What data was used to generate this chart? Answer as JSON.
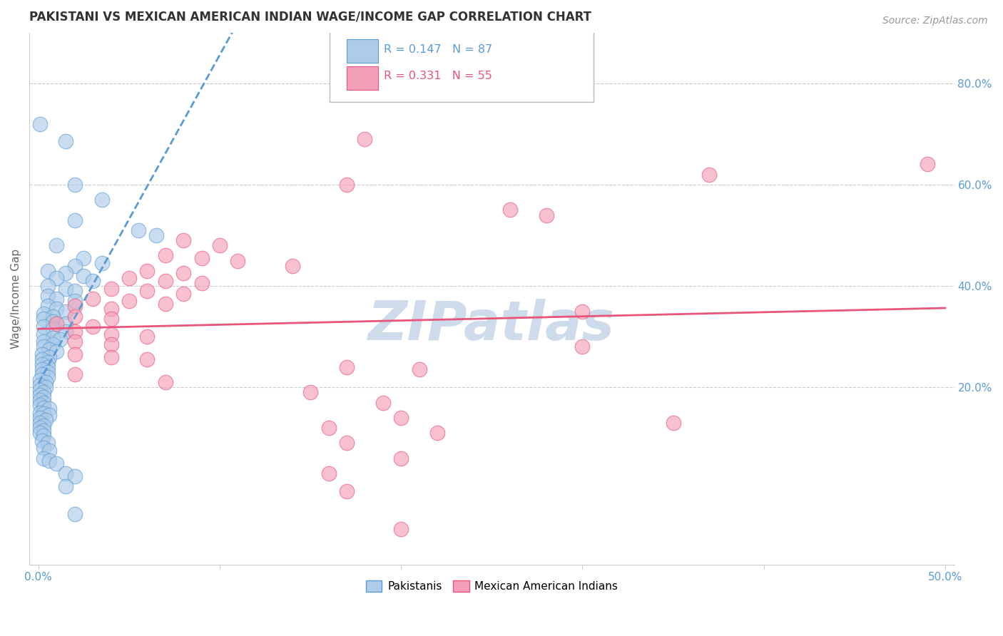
{
  "title": "PAKISTANI VS MEXICAN AMERICAN INDIAN WAGE/INCOME GAP CORRELATION CHART",
  "source": "Source: ZipAtlas.com",
  "ylabel": "Wage/Income Gap",
  "watermark": "ZIPatlas",
  "xlim": [
    -0.005,
    0.505
  ],
  "ylim": [
    -0.15,
    0.9
  ],
  "xtick_positions": [
    0.0,
    0.1,
    0.2,
    0.3,
    0.4,
    0.5
  ],
  "xtick_labels": [
    "0.0%",
    "",
    "",
    "",
    "",
    "50.0%"
  ],
  "yticks_right": [
    0.2,
    0.4,
    0.6,
    0.8
  ],
  "blue_line_color": "#5b9bd5",
  "pink_line_color": "#e8547a",
  "blue_scatter_color": "#aecce8",
  "pink_scatter_color": "#f4a0b8",
  "grid_color": "#cccccc",
  "axis_color": "#5b9bd5",
  "watermark_color": "#c8d8e8",
  "background_color": "#ffffff",
  "title_fontsize": 12,
  "source_fontsize": 10,
  "tick_fontsize": 11,
  "ylabel_fontsize": 11,
  "blue_R": 0.147,
  "blue_N": 87,
  "pink_R": 0.331,
  "pink_N": 55,
  "blue_scatter": [
    [
      0.001,
      0.72
    ],
    [
      0.015,
      0.685
    ],
    [
      0.02,
      0.6
    ],
    [
      0.035,
      0.57
    ],
    [
      0.02,
      0.53
    ],
    [
      0.055,
      0.51
    ],
    [
      0.065,
      0.5
    ],
    [
      0.01,
      0.48
    ],
    [
      0.025,
      0.455
    ],
    [
      0.035,
      0.445
    ],
    [
      0.02,
      0.44
    ],
    [
      0.005,
      0.43
    ],
    [
      0.015,
      0.425
    ],
    [
      0.025,
      0.42
    ],
    [
      0.01,
      0.415
    ],
    [
      0.03,
      0.41
    ],
    [
      0.005,
      0.4
    ],
    [
      0.015,
      0.395
    ],
    [
      0.02,
      0.39
    ],
    [
      0.005,
      0.38
    ],
    [
      0.01,
      0.375
    ],
    [
      0.02,
      0.37
    ],
    [
      0.005,
      0.36
    ],
    [
      0.01,
      0.355
    ],
    [
      0.015,
      0.35
    ],
    [
      0.003,
      0.345
    ],
    [
      0.008,
      0.34
    ],
    [
      0.003,
      0.335
    ],
    [
      0.008,
      0.33
    ],
    [
      0.015,
      0.325
    ],
    [
      0.003,
      0.32
    ],
    [
      0.008,
      0.315
    ],
    [
      0.015,
      0.31
    ],
    [
      0.003,
      0.305
    ],
    [
      0.008,
      0.298
    ],
    [
      0.012,
      0.295
    ],
    [
      0.003,
      0.29
    ],
    [
      0.008,
      0.285
    ],
    [
      0.003,
      0.28
    ],
    [
      0.006,
      0.275
    ],
    [
      0.01,
      0.27
    ],
    [
      0.002,
      0.265
    ],
    [
      0.006,
      0.26
    ],
    [
      0.002,
      0.255
    ],
    [
      0.005,
      0.25
    ],
    [
      0.002,
      0.245
    ],
    [
      0.005,
      0.24
    ],
    [
      0.002,
      0.235
    ],
    [
      0.005,
      0.23
    ],
    [
      0.002,
      0.225
    ],
    [
      0.005,
      0.22
    ],
    [
      0.001,
      0.215
    ],
    [
      0.004,
      0.21
    ],
    [
      0.001,
      0.205
    ],
    [
      0.004,
      0.2
    ],
    [
      0.001,
      0.195
    ],
    [
      0.003,
      0.19
    ],
    [
      0.001,
      0.185
    ],
    [
      0.003,
      0.18
    ],
    [
      0.001,
      0.175
    ],
    [
      0.003,
      0.17
    ],
    [
      0.001,
      0.165
    ],
    [
      0.003,
      0.16
    ],
    [
      0.006,
      0.158
    ],
    [
      0.001,
      0.15
    ],
    [
      0.003,
      0.148
    ],
    [
      0.006,
      0.145
    ],
    [
      0.001,
      0.14
    ],
    [
      0.004,
      0.135
    ],
    [
      0.001,
      0.13
    ],
    [
      0.003,
      0.125
    ],
    [
      0.001,
      0.12
    ],
    [
      0.003,
      0.115
    ],
    [
      0.001,
      0.11
    ],
    [
      0.003,
      0.105
    ],
    [
      0.002,
      0.095
    ],
    [
      0.005,
      0.09
    ],
    [
      0.003,
      0.08
    ],
    [
      0.006,
      0.075
    ],
    [
      0.003,
      0.06
    ],
    [
      0.006,
      0.055
    ],
    [
      0.01,
      0.05
    ],
    [
      0.015,
      0.03
    ],
    [
      0.02,
      0.025
    ],
    [
      0.015,
      0.005
    ],
    [
      0.02,
      -0.05
    ]
  ],
  "pink_scatter": [
    [
      0.49,
      0.64
    ],
    [
      0.18,
      0.69
    ],
    [
      0.37,
      0.62
    ],
    [
      0.17,
      0.6
    ],
    [
      0.26,
      0.55
    ],
    [
      0.28,
      0.54
    ],
    [
      0.08,
      0.49
    ],
    [
      0.1,
      0.48
    ],
    [
      0.07,
      0.46
    ],
    [
      0.09,
      0.455
    ],
    [
      0.11,
      0.45
    ],
    [
      0.14,
      0.44
    ],
    [
      0.06,
      0.43
    ],
    [
      0.08,
      0.425
    ],
    [
      0.05,
      0.415
    ],
    [
      0.07,
      0.41
    ],
    [
      0.09,
      0.405
    ],
    [
      0.04,
      0.395
    ],
    [
      0.06,
      0.39
    ],
    [
      0.08,
      0.385
    ],
    [
      0.03,
      0.375
    ],
    [
      0.05,
      0.37
    ],
    [
      0.07,
      0.365
    ],
    [
      0.02,
      0.36
    ],
    [
      0.04,
      0.355
    ],
    [
      0.3,
      0.35
    ],
    [
      0.02,
      0.34
    ],
    [
      0.04,
      0.335
    ],
    [
      0.01,
      0.325
    ],
    [
      0.03,
      0.32
    ],
    [
      0.02,
      0.31
    ],
    [
      0.04,
      0.305
    ],
    [
      0.06,
      0.3
    ],
    [
      0.02,
      0.29
    ],
    [
      0.04,
      0.285
    ],
    [
      0.3,
      0.28
    ],
    [
      0.02,
      0.265
    ],
    [
      0.04,
      0.26
    ],
    [
      0.06,
      0.255
    ],
    [
      0.17,
      0.24
    ],
    [
      0.21,
      0.235
    ],
    [
      0.02,
      0.225
    ],
    [
      0.07,
      0.21
    ],
    [
      0.15,
      0.19
    ],
    [
      0.19,
      0.17
    ],
    [
      0.2,
      0.14
    ],
    [
      0.35,
      0.13
    ],
    [
      0.16,
      0.12
    ],
    [
      0.22,
      0.11
    ],
    [
      0.17,
      0.09
    ],
    [
      0.2,
      0.06
    ],
    [
      0.16,
      0.03
    ],
    [
      0.17,
      -0.005
    ],
    [
      0.2,
      -0.08
    ]
  ]
}
